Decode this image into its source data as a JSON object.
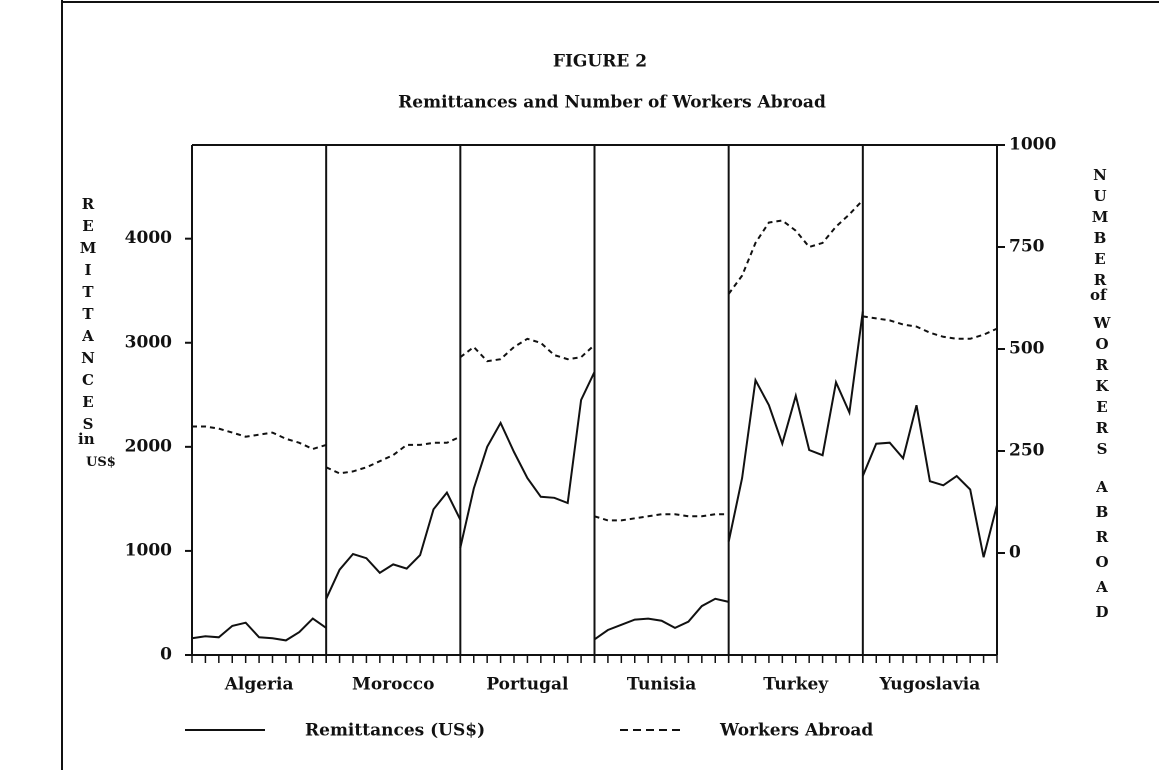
{
  "chart_data": {
    "type": "line",
    "title": "FIGURE 2",
    "subtitle": "Remittances and Number of Workers Abroad",
    "y_label": [
      "REMITTANCES",
      "in",
      "US$"
    ],
    "y2_label": [
      "NUMBER",
      "of",
      "WORKERS",
      "ABROAD"
    ],
    "categories": [
      "Algeria",
      "Morocco",
      "Portugal",
      "Tunisia",
      "Turkey",
      "Yugoslavia"
    ],
    "ylim": [
      0,
      4900
    ],
    "yticks": [
      0,
      1000,
      2000,
      3000,
      4000
    ],
    "y2lim": [
      -250,
      1000
    ],
    "y2ticks": [
      0,
      250,
      500,
      750,
      1000
    ],
    "series": [
      {
        "name": "Remittances (US$)",
        "color": "#111111",
        "dash": "solid",
        "values": [
          [
            160,
            180,
            170,
            280,
            310,
            170,
            160,
            140,
            220,
            350,
            260
          ],
          [
            540,
            820,
            970,
            930,
            790,
            870,
            830,
            960,
            1400,
            1560,
            1300
          ],
          [
            1030,
            1600,
            2000,
            2230,
            1950,
            1700,
            1520,
            1510,
            1460,
            2450,
            2720
          ],
          [
            150,
            240,
            290,
            340,
            350,
            330,
            260,
            320,
            470,
            540,
            510
          ],
          [
            1090,
            1700,
            2640,
            2400,
            2030,
            2490,
            1970,
            1920,
            2620,
            2330,
            3300
          ],
          [
            1720,
            2030,
            2040,
            1890,
            2400,
            1670,
            1630,
            1720,
            1590,
            940,
            1440
          ]
        ]
      },
      {
        "name": "Workers Abroad",
        "color": "#111111",
        "dash": "dashed",
        "axis": "y2",
        "values": [
          [
            310,
            310,
            305,
            295,
            285,
            290,
            295,
            280,
            270,
            255,
            265
          ],
          [
            210,
            195,
            200,
            210,
            225,
            240,
            265,
            265,
            270,
            270,
            285
          ],
          [
            480,
            505,
            470,
            475,
            505,
            525,
            515,
            485,
            475,
            480,
            510
          ],
          [
            90,
            80,
            80,
            85,
            90,
            95,
            95,
            90,
            90,
            95,
            95
          ],
          [
            635,
            680,
            760,
            810,
            815,
            790,
            750,
            760,
            800,
            830,
            865
          ],
          [
            580,
            575,
            570,
            560,
            555,
            540,
            530,
            525,
            525,
            535,
            550
          ]
        ]
      }
    ]
  }
}
